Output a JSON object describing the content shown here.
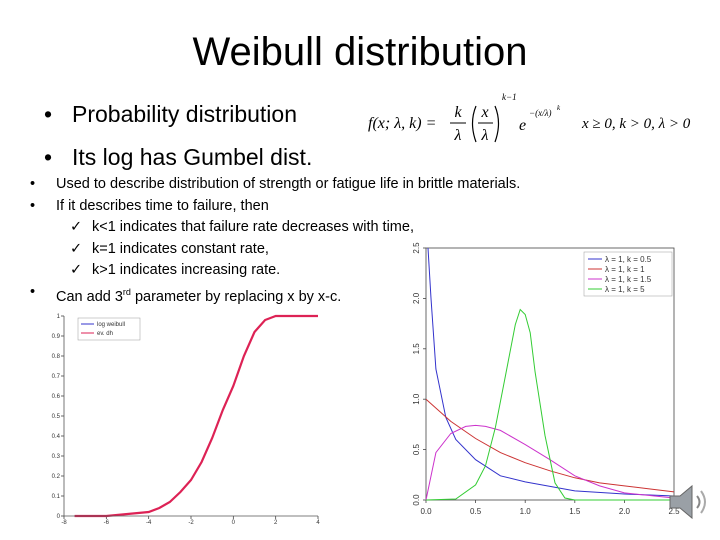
{
  "slide": {
    "title": "Weibull distribution",
    "bullets_main": [
      "Probability distribution",
      "Its log has Gumbel dist."
    ],
    "bullets_detail": [
      "Used to describe distribution of strength or fatigue life in brittle materials.",
      "If it describes time to failure, then"
    ],
    "sub_bullets": [
      "k<1 indicates that failure rate decreases with time,",
      " k=1 indicates constant rate,",
      "k>1 indicates increasing rate."
    ],
    "last_bullet": {
      "before": "Can add 3",
      "sup": "rd",
      "after": " parameter by replacing x by x-c."
    },
    "formula": {
      "lhs": "f(x; λ, k) =",
      "num": "k",
      "den": "λ",
      "inner_num": "x",
      "inner_den": "λ",
      "exp_power": "k−1",
      "e": "e",
      "e_exponent": "−(x/λ)",
      "e_exponent_k": "k",
      "conditions": "x ≥ 0, k > 0, λ > 0"
    },
    "speaker_icon": "speaker-icon"
  },
  "chart_data": [
    {
      "type": "line",
      "title": "",
      "xlabel": "",
      "ylabel": "",
      "xlim": [
        -8,
        4
      ],
      "ylim": [
        0,
        1
      ],
      "xticks": [
        "-8",
        "-6",
        "-4",
        "-2",
        "0",
        "2",
        "4"
      ],
      "yticks": [
        "0",
        "0.1",
        "0.2",
        "0.3",
        "0.4",
        "0.5",
        "0.6",
        "0.7",
        "0.8",
        "0.9",
        "1"
      ],
      "legend": [
        "log weibull",
        "ev. dh"
      ],
      "legend_position": "top-left",
      "series": [
        {
          "name": "log weibull",
          "color": "#3333cc",
          "x": [
            -7.5,
            -6,
            -5,
            -4,
            -3.5,
            -3,
            -2.5,
            -2,
            -1.5,
            -1,
            -0.5,
            0,
            0.5,
            1,
            1.5,
            2,
            4
          ],
          "y": [
            0,
            0,
            0.01,
            0.02,
            0.04,
            0.07,
            0.12,
            0.18,
            0.27,
            0.39,
            0.53,
            0.65,
            0.8,
            0.92,
            0.98,
            1,
            1
          ]
        },
        {
          "name": "ev. dh",
          "color": "#dd2255",
          "x": [
            -7.5,
            -6,
            -5,
            -4,
            -3.5,
            -3,
            -2.5,
            -2,
            -1.5,
            -1,
            -0.5,
            0,
            0.5,
            1,
            1.5,
            2,
            4
          ],
          "y": [
            0,
            0,
            0.01,
            0.02,
            0.04,
            0.07,
            0.12,
            0.18,
            0.27,
            0.39,
            0.53,
            0.65,
            0.8,
            0.92,
            0.98,
            1,
            1
          ]
        }
      ]
    },
    {
      "type": "line",
      "title": "",
      "xlabel": "",
      "ylabel": "",
      "xlim": [
        0,
        2.5
      ],
      "ylim": [
        0,
        2.5
      ],
      "xticks": [
        "0.0",
        "0.5",
        "1.0",
        "1.5",
        "2.0",
        "2.5"
      ],
      "yticks": [
        "0.0",
        "0.5",
        "1.0",
        "1.5",
        "2.0",
        "2.5"
      ],
      "legend_position": "top-right",
      "series": [
        {
          "name": "λ = 1, k = 0.5",
          "color": "#3333cc",
          "x": [
            0.02,
            0.05,
            0.1,
            0.2,
            0.3,
            0.5,
            0.75,
            1,
            1.5,
            2,
            2.5
          ],
          "y": [
            3.1,
            2.0,
            1.3,
            0.82,
            0.6,
            0.4,
            0.24,
            0.18,
            0.09,
            0.06,
            0.04
          ]
        },
        {
          "name": "λ = 1, k = 1",
          "color": "#cc3333",
          "x": [
            0,
            0.25,
            0.5,
            0.75,
            1,
            1.25,
            1.5,
            1.75,
            2,
            2.25,
            2.5
          ],
          "y": [
            1.0,
            0.78,
            0.61,
            0.47,
            0.37,
            0.29,
            0.22,
            0.17,
            0.14,
            0.11,
            0.08
          ]
        },
        {
          "name": "λ = 1, k = 1.5",
          "color": "#cc33cc",
          "x": [
            0,
            0.1,
            0.25,
            0.4,
            0.5,
            0.6,
            0.75,
            1,
            1.25,
            1.5,
            1.75,
            2,
            2.5
          ],
          "y": [
            0,
            0.47,
            0.66,
            0.73,
            0.74,
            0.73,
            0.69,
            0.55,
            0.4,
            0.24,
            0.14,
            0.07,
            0.02
          ]
        },
        {
          "name": "λ = 1, k = 5",
          "color": "#33cc33",
          "x": [
            0,
            0.3,
            0.5,
            0.6,
            0.7,
            0.8,
            0.9,
            0.95,
            1,
            1.05,
            1.1,
            1.2,
            1.3,
            1.4,
            1.5,
            1.6,
            2.5
          ],
          "y": [
            0,
            0.01,
            0.15,
            0.34,
            0.72,
            1.23,
            1.74,
            1.89,
            1.84,
            1.66,
            1.27,
            0.64,
            0.17,
            0.02,
            0,
            0,
            0
          ]
        }
      ]
    }
  ]
}
